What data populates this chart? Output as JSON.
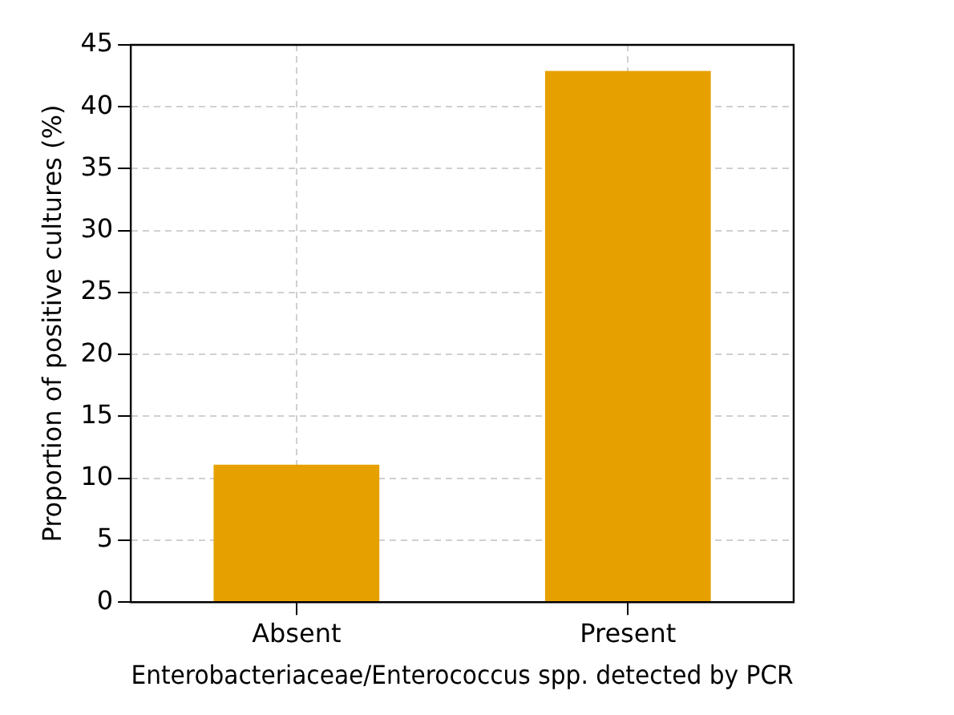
{
  "chart_data": {
    "type": "bar",
    "xlabel": "Enterobacteriaceae/Enterococcus spp. detected by PCR",
    "ylabel": "Proportion of positive cultures (%)",
    "categories": [
      "Absent",
      "Present"
    ],
    "values": [
      11.1,
      42.9
    ],
    "color": "#e6a000",
    "ylim": [
      0,
      45
    ],
    "yticks": [
      0,
      5,
      10,
      15,
      20,
      25,
      30,
      35,
      40,
      45
    ],
    "grid": true
  }
}
